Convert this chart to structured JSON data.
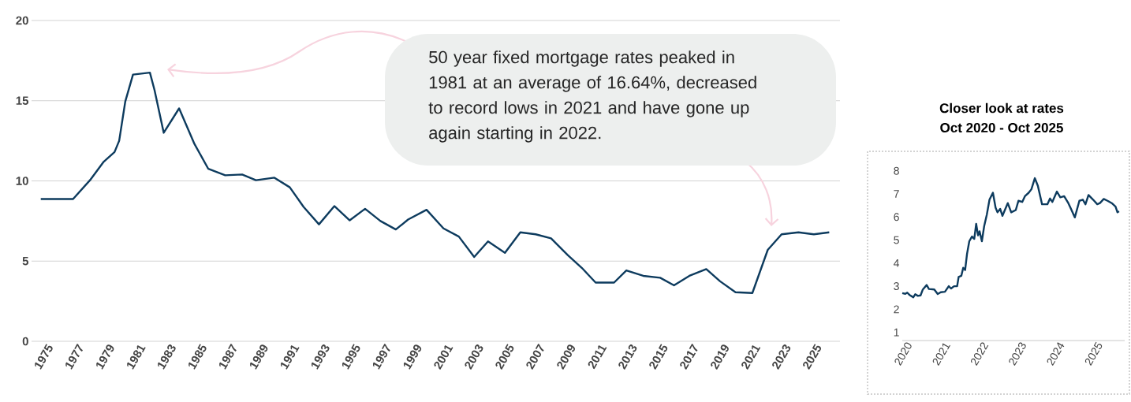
{
  "chart_data": [
    {
      "type": "line",
      "color": "#0d3b5e",
      "grid": "y",
      "x": [
        1974.3,
        1976.4,
        1977.5,
        1978.4,
        1979.1,
        1979.4,
        1979.8,
        1980.3,
        1981.4,
        1981.7,
        1982.3,
        1983.3,
        1984.3,
        1985.2,
        1986.3,
        1987.4,
        1988.3,
        1989.5,
        1990.5,
        1991.4,
        1992.4,
        1993.4,
        1994.4,
        1995.4,
        1996.4,
        1997.4,
        1998.2,
        1999.4,
        2000.5,
        2001.5,
        2002.5,
        2003.4,
        2004.5,
        2005.5,
        2006.5,
        2007.5,
        2008.6,
        2009.5,
        2010.4,
        2011.6,
        2012.4,
        2013.5,
        2014.6,
        2015.5,
        2016.5,
        2017.6,
        2018.5,
        2019.5,
        2020.6,
        2021.6,
        2022.5,
        2023.6,
        2024.6,
        2025.6
      ],
      "values": [
        8.87,
        8.87,
        10.04,
        11.2,
        11.8,
        12.5,
        14.96,
        16.63,
        16.75,
        15.66,
        13.0,
        14.52,
        12.3,
        10.75,
        10.35,
        10.4,
        10.04,
        10.2,
        9.6,
        8.38,
        7.29,
        8.43,
        7.54,
        8.26,
        7.5,
        6.97,
        7.59,
        8.2,
        7.04,
        6.53,
        5.26,
        6.23,
        5.52,
        6.79,
        6.67,
        6.42,
        5.36,
        4.58,
        3.66,
        3.66,
        4.42,
        4.08,
        3.96,
        3.49,
        4.08,
        4.5,
        3.74,
        3.06,
        3.01,
        5.7,
        6.67,
        6.79,
        6.67,
        6.79
      ],
      "xlim": [
        1973.7,
        2026.3
      ],
      "ylim": [
        0,
        20
      ],
      "xticks": [
        1975,
        1977,
        1979,
        1981,
        1983,
        1985,
        1987,
        1989,
        1991,
        1993,
        1995,
        1997,
        1999,
        2001,
        2003,
        2005,
        2007,
        2009,
        2011,
        2013,
        2015,
        2017,
        2019,
        2021,
        2023,
        2025
      ],
      "yticks": [
        0,
        5,
        10,
        15,
        20
      ],
      "annotations": [
        "50 year fixed mortgage rates peaked in 1981 at an average of 16.64%, decreased to record lows in 2021 and have gone up again starting in 2022."
      ]
    },
    {
      "type": "line",
      "color": "#0d3b5e",
      "title": "Closer look at rates",
      "subtitle": "Oct 2020 - Oct 2025",
      "x": [
        2019.78,
        2019.86,
        2019.91,
        2019.97,
        2020.07,
        2020.12,
        2020.19,
        2020.26,
        2020.32,
        2020.42,
        2020.48,
        2020.62,
        2020.71,
        2020.79,
        2020.9,
        2021.0,
        2021.06,
        2021.14,
        2021.22,
        2021.26,
        2021.33,
        2021.38,
        2021.43,
        2021.48,
        2021.54,
        2021.61,
        2021.67,
        2021.72,
        2021.77,
        2021.81,
        2021.87,
        2021.93,
        2022.0,
        2022.07,
        2022.16,
        2022.23,
        2022.28,
        2022.35,
        2022.41,
        2022.55,
        2022.64,
        2022.76,
        2022.83,
        2022.93,
        2023.0,
        2023.1,
        2023.17,
        2023.26,
        2023.34,
        2023.45,
        2023.59,
        2023.66,
        2023.72,
        2023.84,
        2023.93,
        2024.03,
        2024.14,
        2024.21,
        2024.31,
        2024.43,
        2024.52,
        2024.59,
        2024.67,
        2024.79,
        2024.9,
        2024.97,
        2025.07,
        2025.17,
        2025.28,
        2025.38,
        2025.43,
        2025.47
      ],
      "values": [
        2.7,
        2.67,
        2.72,
        2.62,
        2.52,
        2.65,
        2.58,
        2.6,
        2.86,
        3.05,
        2.88,
        2.86,
        2.66,
        2.74,
        2.76,
        3.0,
        2.9,
        3.0,
        3.0,
        3.4,
        3.45,
        3.8,
        3.7,
        4.4,
        4.95,
        5.15,
        5.05,
        5.7,
        5.2,
        5.38,
        4.95,
        5.6,
        6.1,
        6.75,
        7.05,
        6.4,
        6.2,
        6.35,
        6.05,
        6.6,
        6.2,
        6.3,
        6.7,
        6.65,
        6.9,
        7.05,
        7.2,
        7.68,
        7.35,
        6.55,
        6.55,
        6.8,
        6.65,
        7.1,
        6.85,
        6.9,
        6.6,
        6.35,
        5.98,
        6.7,
        6.75,
        6.55,
        6.95,
        6.75,
        6.55,
        6.6,
        6.78,
        6.7,
        6.6,
        6.45,
        6.2,
        6.25
      ],
      "xlim": [
        2019.78,
        2025.62
      ],
      "ylim": [
        0.64,
        8
      ],
      "xticks": [
        2020,
        2021,
        2022,
        2023,
        2024,
        2025
      ],
      "yticks": [
        1,
        2,
        3,
        4,
        5,
        6,
        7,
        8
      ]
    }
  ]
}
